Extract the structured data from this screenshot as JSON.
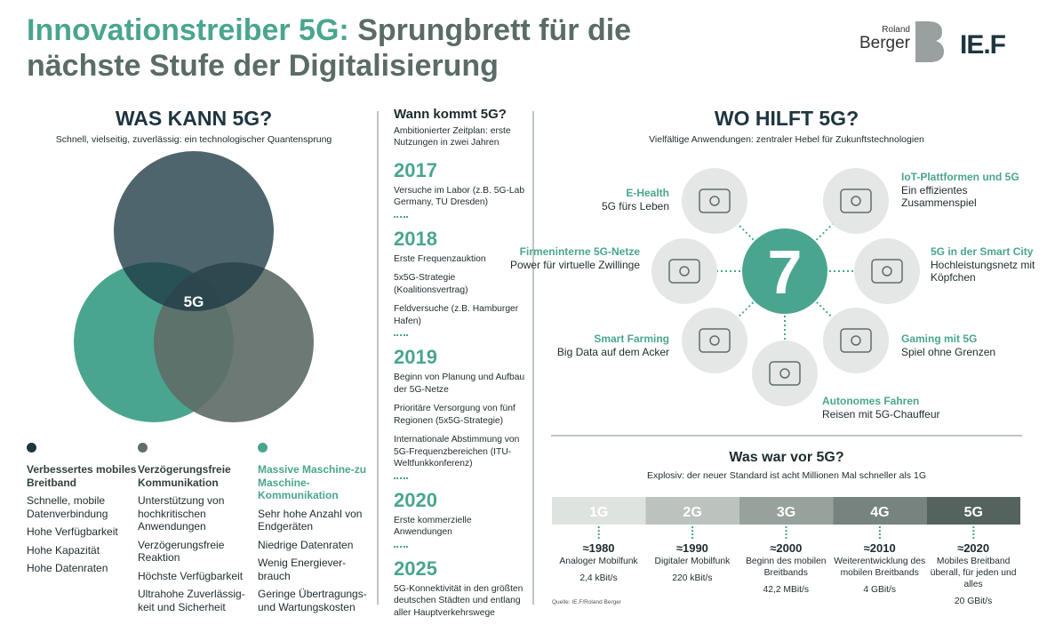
{
  "header": {
    "title_highlight": "Innovationstreiber 5G:",
    "title": "Sprungbrett für die nächste Stufe der Digitalisierung",
    "logos": [
      "Roland",
      "Berger",
      "IE.F"
    ]
  },
  "capabilities": {
    "heading": "WAS KANN 5G?",
    "subtitle": "Schnell, vielseitig, zuverlässig: ein technologischer Quantensprung",
    "center_label": "5G",
    "groups": [
      {
        "title": "Verbessertes mobiles Breitband",
        "items": [
          "Schnelle, mobile Datenverbindung",
          "Hohe Verfügbarkeit",
          "Hohe Kapazität",
          "Hohe Datenraten"
        ]
      },
      {
        "title": "Verzögerungsfreie Kommunikation",
        "items": [
          "Unterstützung von hochkritischen Anwendungen",
          "Verzögerungsfreie Reaktion",
          "Höchste Verfügbarkeit",
          "Ultrahohe Zuverlässig-keit und Sicherheit"
        ]
      },
      {
        "title": "Massive Maschine-zu Maschine-Kommunikation",
        "items": [
          "Sehr hohe Anzahl von Endgeräten",
          "Niedrige Datenraten",
          "Wenig Energiever-brauch",
          "Geringe Übertragungs- und Wartungskosten"
        ]
      }
    ]
  },
  "timeline": {
    "heading": "Wann kommt 5G?",
    "subtitle": "Ambitionierter Zeitplan: erste Nutzungen in zwei Jahren",
    "years": [
      {
        "year": "2017",
        "items": [
          "Versuche im Labor (z.B. 5G-Lab Germany, TU Dresden)"
        ]
      },
      {
        "year": "2018",
        "items": [
          "Erste Frequenzauktion",
          "5x5G-Strategie (Koalitionsvertrag)",
          "Feldversuche (z.B. Hamburger Hafen)"
        ]
      },
      {
        "year": "2019",
        "items": [
          "Beginn von Planung und Aufbau der 5G-Netze",
          "Prioritäre Versorgung von fünf Regionen (5x5G-Strategie)",
          "Internationale Abstimmung von 5G-Frequenzbereichen (ITU-Weltfunkkonferenz)"
        ]
      },
      {
        "year": "2020",
        "items": [
          "Erste kommerzielle Anwendungen"
        ]
      },
      {
        "year": "2025",
        "items": [
          "5G-Konnektivität in den größten deutschen Städten und entlang aller Hauptverkehrswege"
        ]
      }
    ]
  },
  "applications": {
    "heading": "WO HILFT 5G?",
    "subtitle": "Vielfältige Anwendungen: zentraler Hebel für Zukunftstechnologien",
    "count": 7,
    "items": [
      {
        "title": "E-Health",
        "text": "5G fürs Leben"
      },
      {
        "title": "IoT-Plattformen und 5G",
        "text": "Ein effizientes Zusammenspiel"
      },
      {
        "title": "Firmeninterne 5G-Netze",
        "text": "Power für virtuelle Zwillinge"
      },
      {
        "title": "5G in der Smart City",
        "text": "Hochleistungsnetz mit Köpfchen"
      },
      {
        "title": "Smart Farming",
        "text": "Big Data auf dem Acker"
      },
      {
        "title": "Gaming mit 5G",
        "text": "Spiel ohne Grenzen"
      },
      {
        "title": "Autonomes Fahren",
        "text": "Reisen mit 5G-Chauffeur"
      }
    ]
  },
  "history": {
    "heading": "Was war vor 5G?",
    "subtitle": "Explosiv: der neuer Standard ist acht Millionen Mal schneller als 1G",
    "generations": [
      {
        "name": "1G",
        "year": "≈1980",
        "description": "Analoger Mobilfunk",
        "speed": "2,4 kBit/s"
      },
      {
        "name": "2G",
        "year": "≈1990",
        "description": "Digitaler Mobilfunk",
        "speed": "220 kBit/s"
      },
      {
        "name": "3G",
        "year": "≈2000",
        "description": "Beginn des mobilen Breitbands",
        "speed": "42,2 MBit/s"
      },
      {
        "name": "4G",
        "year": "≈2010",
        "description": "Weiterentwicklung des mobilen Breitbands",
        "speed": "4 GBit/s"
      },
      {
        "name": "5G",
        "year": "≈2020",
        "description": "Mobiles Breitband überall, für jeden und alles",
        "speed": "20 GBit/s"
      }
    ],
    "source": "Quelle: IE.F/Roland Berger"
  }
}
